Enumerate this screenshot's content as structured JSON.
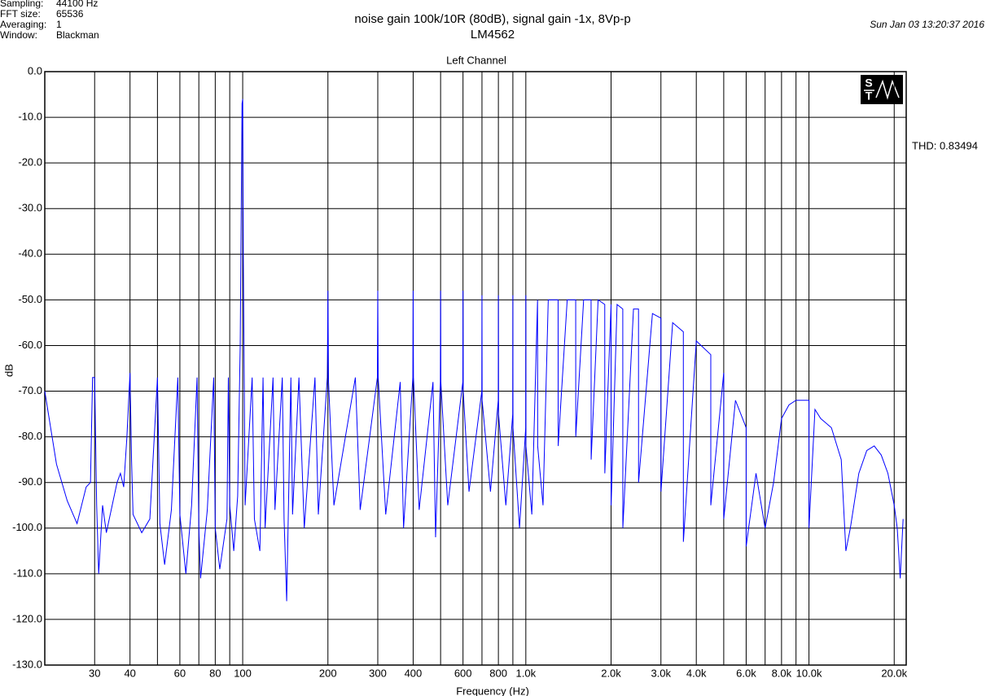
{
  "chart_data": {
    "type": "line",
    "title": "noise gain 100k/10R (80dB), signal gain -1x, 8Vp-p",
    "subtitle": "LM4562",
    "plot_title": "Left Channel",
    "date": "Sun Jan 03 13:20:37 2016",
    "annotation": "THD: 0.83494",
    "info": [
      {
        "label": "Sampling:",
        "value": "44100 Hz"
      },
      {
        "label": "FFT size:",
        "value": "65536"
      },
      {
        "label": "Averaging:",
        "value": "1"
      },
      {
        "label": "Window:",
        "value": "Blackman"
      }
    ],
    "x_label": "Frequency (Hz)",
    "y_label": "dB",
    "xscale": "log",
    "grid": true,
    "xlim": [
      20,
      22050
    ],
    "ylim": [
      -130,
      0
    ],
    "xticks": [
      30,
      40,
      60,
      80,
      100,
      200,
      300,
      400,
      600,
      800,
      {
        "value": 1000,
        "label": "1.0k"
      },
      {
        "value": 2000,
        "label": "2.0k"
      },
      {
        "value": 3000,
        "label": "3.0k"
      },
      {
        "value": 4000,
        "label": "4.0k"
      },
      {
        "value": 6000,
        "label": "6.0k"
      },
      {
        "value": 8000,
        "label": "8.0k"
      },
      {
        "value": 10000,
        "label": "10.0k"
      },
      {
        "value": 20000,
        "label": "20.0k"
      }
    ],
    "xgrid_minor": [
      50,
      70,
      90,
      500,
      700,
      900,
      5000,
      7000,
      9000
    ],
    "yticks": [
      {
        "value": 0,
        "label": "0.0"
      },
      {
        "value": -10,
        "label": "-10.0"
      },
      {
        "value": -20,
        "label": "-20.0"
      },
      {
        "value": -30,
        "label": "-30.0"
      },
      {
        "value": -40,
        "label": "-40.0"
      },
      {
        "value": -50,
        "label": "-50.0"
      },
      {
        "value": -60,
        "label": "-60.0"
      },
      {
        "value": -70,
        "label": "-70.0"
      },
      {
        "value": -80,
        "label": "-80.0"
      },
      {
        "value": -90,
        "label": "-90.0"
      },
      {
        "value": -100,
        "label": "-100.0"
      },
      {
        "value": -110,
        "label": "-110.0"
      },
      {
        "value": -120,
        "label": "-120.0"
      },
      {
        "value": -130,
        "label": "-130.0"
      }
    ],
    "x": [
      20,
      22,
      24,
      26,
      28,
      29,
      29.5,
      30,
      30.5,
      31,
      32,
      33,
      36,
      37,
      38,
      39,
      40,
      40.5,
      41,
      44,
      47,
      50,
      51,
      53,
      56,
      59,
      60,
      63,
      66,
      69,
      70,
      71,
      75,
      79,
      80,
      83,
      88,
      89,
      90,
      93,
      96,
      98,
      99.5,
      100,
      100.5,
      102,
      108,
      110,
      115,
      118,
      120,
      128,
      130,
      138,
      140,
      143,
      148,
      150,
      158,
      165,
      180,
      185,
      199,
      200,
      201,
      210,
      250,
      260,
      299,
      300,
      301,
      320,
      360,
      370,
      399,
      400,
      401,
      420,
      470,
      480,
      499,
      500,
      501,
      530,
      599,
      600,
      601,
      630,
      699,
      700,
      701,
      750,
      799,
      800,
      801,
      850,
      899,
      900,
      901,
      950,
      999,
      1000,
      1001,
      1050,
      1100,
      1101,
      1150,
      1200,
      1300,
      1301,
      1400,
      1500,
      1501,
      1600,
      1700,
      1701,
      1800,
      1900,
      1901,
      2000,
      2001,
      2100,
      2200,
      2201,
      2400,
      2500,
      2501,
      2800,
      3000,
      3001,
      3300,
      3600,
      3601,
      4000,
      4500,
      4501,
      5000,
      5001,
      5500,
      6000,
      6001,
      6500,
      7000,
      7500,
      8000,
      8500,
      9000,
      9500,
      10000,
      10001,
      10500,
      11000,
      12000,
      13000,
      13500,
      14000,
      15000,
      16000,
      17000,
      18000,
      19000,
      20000,
      20500,
      21000,
      21500
    ],
    "series": [
      {
        "color": "#0000ff",
        "values": [
          -70,
          -86,
          -94,
          -99,
          -91,
          -90,
          -67,
          -67,
          -95,
          -110,
          -95,
          -101,
          -90,
          -88,
          -91,
          -80,
          -66,
          -85,
          -97,
          -101,
          -98,
          -67,
          -99,
          -108,
          -96,
          -67,
          -97,
          -110,
          -95,
          -67,
          -100,
          -111,
          -96,
          -67,
          -100,
          -109,
          -98,
          -67,
          -95,
          -105,
          -93,
          -60,
          -7,
          -6,
          -40,
          -95,
          -67,
          -98,
          -105,
          -67,
          -100,
          -67,
          -96,
          -67,
          -98,
          -116,
          -67,
          -97,
          -67,
          -100,
          -67,
          -97,
          -67,
          -48,
          -68,
          -95,
          -67,
          -96,
          -67,
          -48,
          -67,
          -97,
          -68,
          -100,
          -67,
          -48,
          -67,
          -96,
          -68,
          -102,
          -68,
          -48,
          -68,
          -95,
          -68,
          -48,
          -70,
          -92,
          -70,
          -49,
          -72,
          -92,
          -72,
          -49,
          -75,
          -95,
          -75,
          -49,
          -78,
          -100,
          -78,
          -49,
          -82,
          -97,
          -50,
          -82,
          -95,
          -50,
          -50,
          -82,
          -50,
          -50,
          -80,
          -50,
          -50,
          -85,
          -50,
          -51,
          -88,
          -51,
          -95,
          -51,
          -52,
          -100,
          -52,
          -52,
          -90,
          -53,
          -54,
          -92,
          -55,
          -57,
          -103,
          -59,
          -62,
          -95,
          -66,
          -98,
          -72,
          -78,
          -104,
          -88,
          -100,
          -90,
          -76,
          -73,
          -72,
          -72,
          -72,
          -100,
          -74,
          -76,
          -78,
          -85,
          -105,
          -100,
          -88,
          -83,
          -82,
          -84,
          -88,
          -95,
          -100,
          -111,
          -98
        ]
      }
    ]
  }
}
